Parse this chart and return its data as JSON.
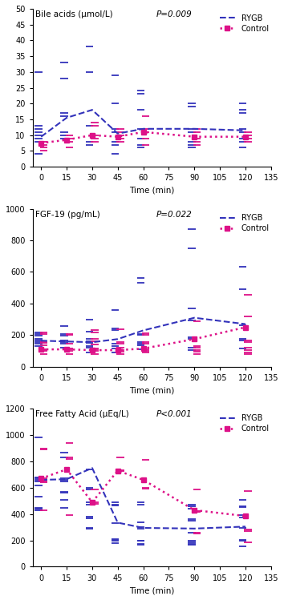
{
  "panel1": {
    "title": "Bile acids (μmol/L)",
    "pvalue": "P=0.009",
    "ylim": [
      0,
      50
    ],
    "yticks": [
      0,
      5,
      10,
      15,
      20,
      25,
      30,
      35,
      40,
      45,
      50
    ],
    "rygb_mean": [
      9.5,
      15.5,
      18.0,
      10.5,
      12.0,
      12.0,
      11.5
    ],
    "ctrl_mean": [
      7.5,
      8.5,
      10.0,
      9.5,
      11.0,
      9.5,
      9.5
    ],
    "rygb_scatter": [
      [
        4,
        8,
        9,
        10,
        11,
        12,
        13,
        30
      ],
      [
        9,
        10,
        11,
        16,
        17,
        28,
        33
      ],
      [
        7,
        8,
        13,
        30,
        38
      ],
      [
        4,
        7,
        8,
        11,
        12,
        20,
        29
      ],
      [
        6,
        7,
        9,
        12,
        18,
        23,
        24
      ],
      [
        6,
        7,
        8,
        11,
        12,
        19,
        20
      ],
      [
        6,
        8,
        9,
        11,
        12,
        17,
        18,
        20
      ]
    ],
    "ctrl_scatter": [
      [
        5,
        6,
        7,
        8
      ],
      [
        6,
        8,
        9,
        10
      ],
      [
        8,
        9,
        10,
        13,
        14
      ],
      [
        8,
        9,
        10,
        11,
        12
      ],
      [
        7,
        9,
        11,
        12,
        16
      ],
      [
        7,
        8,
        9,
        11,
        12
      ],
      [
        8,
        9,
        10,
        11
      ]
    ]
  },
  "panel2": {
    "title": "FGF-19 (pg/mL)",
    "pvalue": "P=0.022",
    "ylim": [
      0,
      1000
    ],
    "yticks": [
      0,
      200,
      400,
      600,
      800,
      1000
    ],
    "rygb_mean": [
      165,
      160,
      155,
      175,
      230,
      310,
      270
    ],
    "ctrl_mean": [
      110,
      110,
      105,
      105,
      115,
      175,
      250
    ],
    "rygb_scatter": [
      [
        130,
        145,
        155,
        165,
        175,
        195,
        205,
        215
      ],
      [
        120,
        145,
        155,
        165,
        195,
        205,
        260
      ],
      [
        90,
        120,
        130,
        150,
        160,
        175,
        220,
        300
      ],
      [
        90,
        115,
        130,
        145,
        230,
        240,
        360
      ],
      [
        110,
        135,
        145,
        155,
        200,
        205,
        530,
        560
      ],
      [
        105,
        120,
        175,
        185,
        295,
        370,
        750,
        870
      ],
      [
        115,
        165,
        175,
        265,
        490,
        635
      ]
    ],
    "ctrl_scatter": [
      [
        80,
        100,
        105,
        110,
        135,
        150,
        155,
        205,
        215
      ],
      [
        80,
        100,
        110,
        115,
        145,
        200,
        205
      ],
      [
        80,
        100,
        110,
        115,
        140,
        160,
        175,
        215,
        230
      ],
      [
        80,
        95,
        105,
        120,
        145,
        155,
        235
      ],
      [
        90,
        100,
        110,
        145,
        155,
        200,
        210
      ],
      [
        80,
        95,
        105,
        120,
        130,
        290
      ],
      [
        80,
        90,
        105,
        120,
        155,
        165,
        320,
        455
      ]
    ]
  },
  "panel3": {
    "title": "Free Fatty Acid (μEq/L)",
    "pvalue": "P<0.001",
    "ylim": [
      0,
      1200
    ],
    "yticks": [
      0,
      200,
      400,
      600,
      800,
      1000,
      1200
    ],
    "rygb_mean": [
      660,
      665,
      750,
      335,
      295,
      290,
      305
    ],
    "ctrl_mean": [
      670,
      740,
      490,
      730,
      660,
      430,
      385
    ],
    "rygb_scatter": [
      [
        430,
        440,
        450,
        530,
        620,
        650,
        660,
        670,
        680,
        980
      ],
      [
        450,
        510,
        560,
        570,
        650,
        660,
        670,
        830,
        870
      ],
      [
        290,
        295,
        370,
        380,
        470,
        490,
        590,
        600,
        740
      ],
      [
        180,
        200,
        205,
        210,
        330,
        465,
        470,
        490
      ],
      [
        165,
        175,
        195,
        200,
        290,
        300,
        340,
        470,
        490
      ],
      [
        165,
        175,
        185,
        195,
        260,
        350,
        360,
        440,
        460,
        470
      ],
      [
        155,
        200,
        205,
        295,
        375,
        390,
        455,
        460,
        510
      ]
    ],
    "ctrl_scatter": [
      [
        430,
        640,
        650,
        660,
        670,
        890,
        895
      ],
      [
        395,
        820,
        830,
        940
      ],
      [
        480,
        490,
        590
      ],
      [
        730,
        735,
        830
      ],
      [
        595,
        600,
        810
      ],
      [
        255,
        260,
        415,
        420,
        425,
        585
      ],
      [
        185,
        270,
        280,
        575
      ]
    ]
  },
  "times": [
    0,
    15,
    30,
    45,
    60,
    90,
    120
  ],
  "rygb_color": "#3333bb",
  "ctrl_color": "#dd1188"
}
